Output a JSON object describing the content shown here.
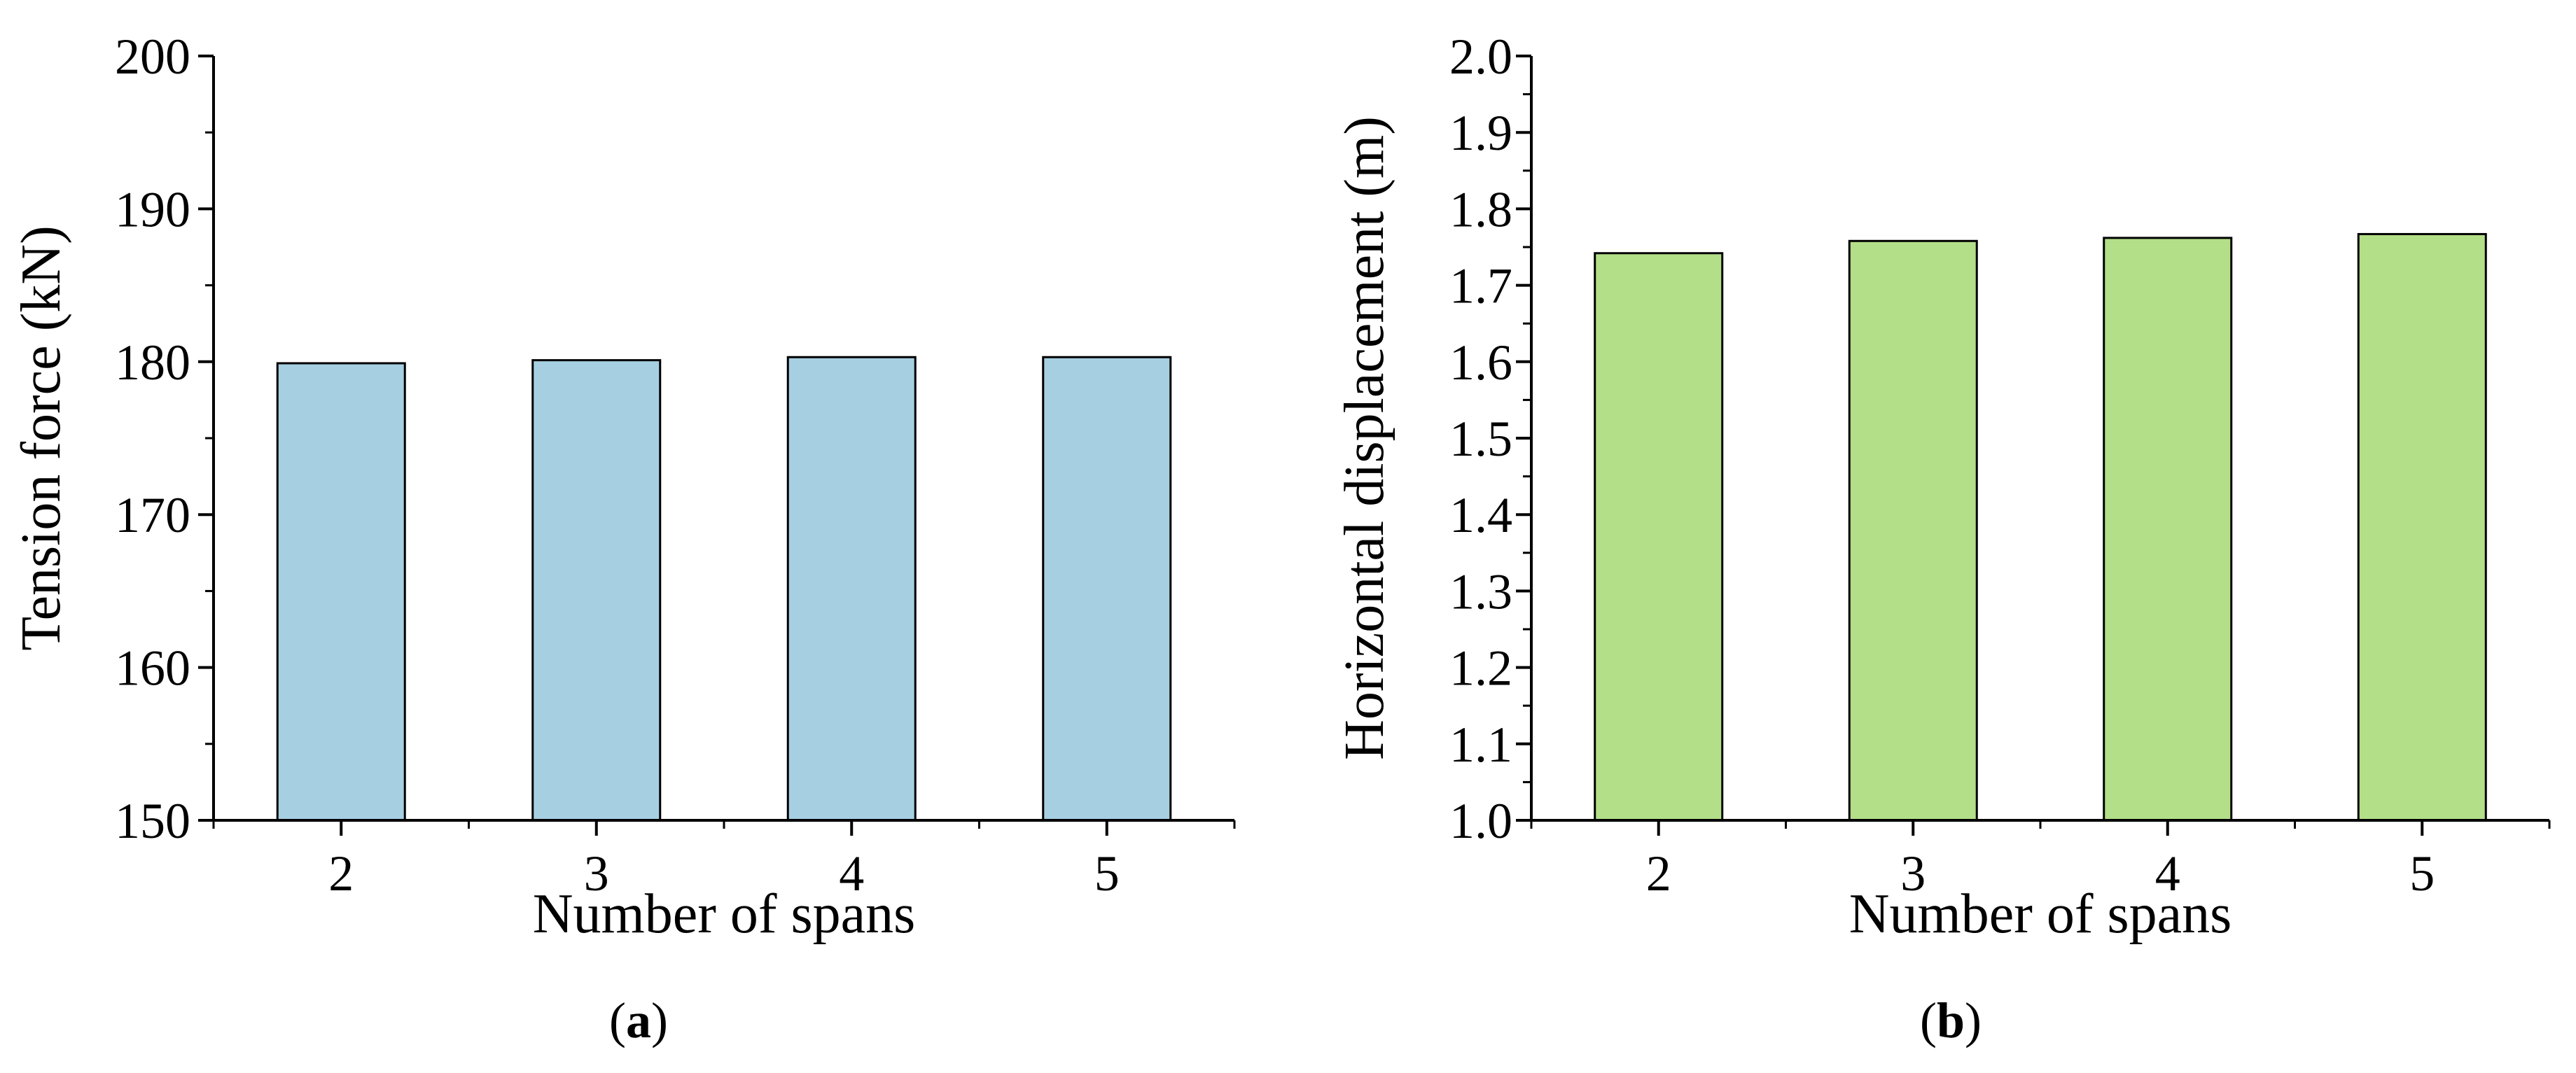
{
  "chart_data": [
    {
      "type": "bar",
      "panel_label": "a",
      "categories": [
        "2",
        "3",
        "4",
        "5"
      ],
      "values": [
        179.9,
        180.1,
        180.3,
        180.3
      ],
      "xlabel": "Number of spans",
      "ylabel": "Tension force (kN)",
      "ylim": [
        150,
        200
      ],
      "yticks": [
        150,
        160,
        170,
        180,
        190,
        200
      ],
      "ytick_labels": [
        "150",
        "160",
        "170",
        "180",
        "190",
        "200"
      ],
      "bar_color": "#a6cfe2",
      "grid": false,
      "legend": "none"
    },
    {
      "type": "bar",
      "panel_label": "b",
      "categories": [
        "2",
        "3",
        "4",
        "5"
      ],
      "values": [
        1.742,
        1.758,
        1.762,
        1.767
      ],
      "xlabel": "Number of spans",
      "ylabel": "Horizontal displacement (m)",
      "ylim": [
        1.0,
        2.0
      ],
      "yticks": [
        1.0,
        1.1,
        1.2,
        1.3,
        1.4,
        1.5,
        1.6,
        1.7,
        1.8,
        1.9,
        2.0
      ],
      "ytick_labels": [
        "1.0",
        "1.1",
        "1.2",
        "1.3",
        "1.4",
        "1.5",
        "1.6",
        "1.7",
        "1.8",
        "1.9",
        "2.0"
      ],
      "bar_color": "#b3df88",
      "grid": false,
      "legend": "none"
    }
  ]
}
